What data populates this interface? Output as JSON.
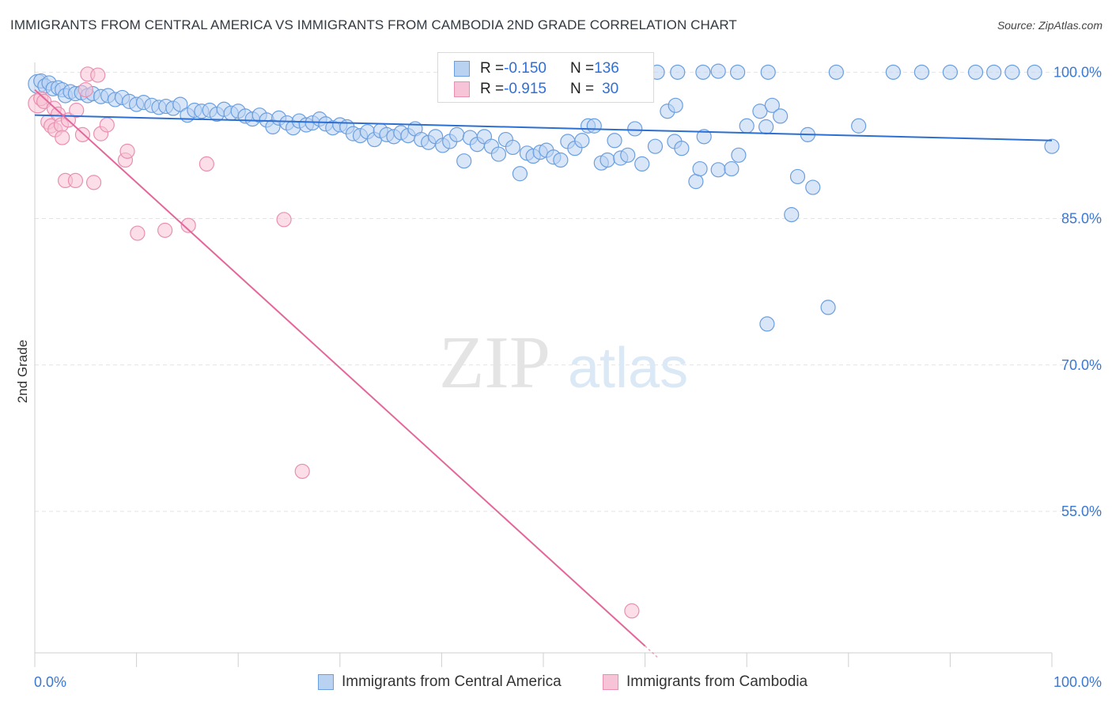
{
  "header": {
    "title": "IMMIGRANTS FROM CENTRAL AMERICA VS IMMIGRANTS FROM CAMBODIA 2ND GRADE CORRELATION CHART",
    "source": "Source: ZipAtlas.com"
  },
  "watermark": {
    "zip": "ZIP",
    "atlas": "atlas"
  },
  "colors": {
    "blue": "#6a9fe0",
    "blue_fill": "#b9d2f2",
    "blue_line": "#2d6fd1",
    "pink": "#ea8fb0",
    "pink_fill": "#f7c3d6",
    "pink_line": "#e4679a",
    "tick_label": "#3a78d4",
    "grid": "#e3e3e3"
  },
  "legend_top": {
    "rows": [
      {
        "r_label": "R = ",
        "r_value": "-0.150",
        "n_label": "N = ",
        "n_value": "136"
      },
      {
        "r_label": "R = ",
        "r_value": "-0.915",
        "n_label": "N = ",
        "n_value": "30"
      }
    ]
  },
  "legend_bottom": {
    "items": [
      "Immigrants from Central America",
      "Immigrants from Cambodia"
    ]
  },
  "chart_data": {
    "type": "scatter",
    "title": "IMMIGRANTS FROM CENTRAL AMERICA VS IMMIGRANTS FROM CAMBODIA 2ND GRADE CORRELATION CHART",
    "xlabel": "",
    "ylabel": "2nd Grade",
    "xlim": [
      0,
      100
    ],
    "ylim": [
      40.5,
      101
    ],
    "x_tick_labels": [
      "0.0%",
      "100.0%"
    ],
    "y_ticks": [
      100,
      85,
      70,
      55
    ],
    "y_tick_labels": [
      "100.0%",
      "85.0%",
      "70.0%",
      "55.0%"
    ],
    "grid": "horizontal dashed",
    "legend_position": "top-center",
    "series": [
      {
        "name": "Immigrants from Central America",
        "R": -0.15,
        "N": 136,
        "trend": {
          "x": [
            0,
            100
          ],
          "y": [
            95.6,
            93.0
          ]
        },
        "points": [
          [
            0.3,
            98.8,
            2
          ],
          [
            0.6,
            99.1,
            1
          ],
          [
            1.0,
            98.6,
            1
          ],
          [
            1.4,
            98.9,
            1
          ],
          [
            1.8,
            98.3,
            1
          ],
          [
            2.3,
            98.4,
            1
          ],
          [
            2.7,
            98.2,
            1
          ],
          [
            3.0,
            97.6,
            1
          ],
          [
            3.5,
            98.0,
            1
          ],
          [
            4.0,
            97.8,
            1
          ],
          [
            4.6,
            97.9,
            1
          ],
          [
            5.2,
            97.6,
            1
          ],
          [
            5.7,
            97.8,
            1
          ],
          [
            6.5,
            97.5,
            1
          ],
          [
            7.2,
            97.6,
            1
          ],
          [
            7.9,
            97.2,
            1
          ],
          [
            8.6,
            97.4,
            1
          ],
          [
            9.3,
            97.0,
            1
          ],
          [
            10.0,
            96.7,
            1
          ],
          [
            10.7,
            96.9,
            1
          ],
          [
            11.5,
            96.6,
            1
          ],
          [
            12.2,
            96.4,
            1
          ],
          [
            12.9,
            96.5,
            1
          ],
          [
            13.6,
            96.3,
            1
          ],
          [
            14.3,
            96.7,
            1
          ],
          [
            15.0,
            95.6,
            1
          ],
          [
            15.7,
            96.1,
            1
          ],
          [
            16.4,
            96.0,
            1
          ],
          [
            17.2,
            96.1,
            1
          ],
          [
            17.9,
            95.7,
            1
          ],
          [
            18.6,
            96.2,
            1
          ],
          [
            19.3,
            95.8,
            1
          ],
          [
            20.0,
            96.0,
            1
          ],
          [
            20.7,
            95.5,
            1
          ],
          [
            21.4,
            95.2,
            1
          ],
          [
            22.1,
            95.6,
            1
          ],
          [
            22.8,
            95.1,
            1
          ],
          [
            23.4,
            94.4,
            1
          ],
          [
            24.0,
            95.3,
            1
          ],
          [
            24.8,
            94.8,
            1
          ],
          [
            25.4,
            94.3,
            1
          ],
          [
            26.0,
            95.0,
            1
          ],
          [
            26.7,
            94.6,
            1
          ],
          [
            27.3,
            94.8,
            1
          ],
          [
            28.0,
            95.2,
            1
          ],
          [
            28.6,
            94.7,
            1
          ],
          [
            29.3,
            94.3,
            1
          ],
          [
            30.0,
            94.6,
            1
          ],
          [
            30.7,
            94.4,
            1
          ],
          [
            31.3,
            93.7,
            1
          ],
          [
            32.0,
            93.5,
            1
          ],
          [
            32.7,
            93.9,
            1
          ],
          [
            33.4,
            93.1,
            1
          ],
          [
            34.0,
            94.0,
            1
          ],
          [
            34.6,
            93.6,
            1
          ],
          [
            35.3,
            93.4,
            1
          ],
          [
            36.0,
            93.8,
            1
          ],
          [
            36.7,
            93.5,
            1
          ],
          [
            37.4,
            94.2,
            1
          ],
          [
            38.0,
            93.1,
            1
          ],
          [
            38.7,
            92.8,
            1
          ],
          [
            39.4,
            93.4,
            1
          ],
          [
            40.1,
            92.5,
            1
          ],
          [
            40.8,
            92.9,
            1
          ],
          [
            41.5,
            93.6,
            1
          ],
          [
            42.2,
            90.9,
            1
          ],
          [
            42.8,
            93.3,
            1
          ],
          [
            43.5,
            92.6,
            1
          ],
          [
            44.2,
            93.4,
            1
          ],
          [
            44.9,
            92.4,
            1
          ],
          [
            45.6,
            91.6,
            1
          ],
          [
            46.3,
            93.1,
            1
          ],
          [
            47.0,
            92.3,
            1
          ],
          [
            47.7,
            89.6,
            1
          ],
          [
            48.4,
            91.7,
            1
          ],
          [
            49.0,
            91.4,
            1
          ],
          [
            49.7,
            91.8,
            1
          ],
          [
            50.3,
            92.0,
            1
          ],
          [
            51.0,
            91.3,
            1
          ],
          [
            51.7,
            91.0,
            1
          ],
          [
            52.4,
            92.9,
            1
          ],
          [
            53.1,
            92.2,
            1
          ],
          [
            53.8,
            93.0,
            1
          ],
          [
            54.4,
            94.5,
            1
          ],
          [
            55.0,
            94.5,
            1
          ],
          [
            55.7,
            90.7,
            1
          ],
          [
            56.3,
            91.0,
            1
          ],
          [
            57.0,
            93.0,
            1
          ],
          [
            57.6,
            91.2,
            1
          ],
          [
            58.3,
            91.5,
            1
          ],
          [
            59.0,
            94.2,
            1
          ],
          [
            59.7,
            90.6,
            1
          ],
          [
            61.0,
            92.4,
            1
          ],
          [
            62.2,
            96.0,
            1
          ],
          [
            62.9,
            92.9,
            1
          ],
          [
            63.6,
            92.2,
            1
          ],
          [
            65.0,
            88.8,
            1
          ],
          [
            65.4,
            90.1,
            1
          ],
          [
            65.8,
            93.4,
            1
          ],
          [
            67.2,
            90.0,
            1
          ],
          [
            68.5,
            90.1,
            1
          ],
          [
            69.2,
            91.5,
            1
          ],
          [
            70.0,
            94.5,
            1
          ],
          [
            71.3,
            96.0,
            1
          ],
          [
            71.9,
            94.4,
            1
          ],
          [
            72.5,
            96.6,
            1
          ],
          [
            73.3,
            95.5,
            1
          ],
          [
            74.4,
            85.4,
            1
          ],
          [
            75.0,
            89.3,
            1
          ],
          [
            76.0,
            93.6,
            1
          ],
          [
            76.5,
            88.2,
            1
          ],
          [
            78.0,
            75.9,
            1
          ],
          [
            81.0,
            94.5,
            1
          ],
          [
            72.0,
            74.2,
            1
          ],
          [
            63.0,
            96.6,
            1
          ],
          [
            47.3,
            100.1,
            1
          ],
          [
            48.8,
            100.1,
            1
          ],
          [
            50.0,
            100.0,
            1
          ],
          [
            52.9,
            99.9,
            1
          ],
          [
            54.1,
            100.0,
            1
          ],
          [
            56.3,
            100.0,
            1
          ],
          [
            61.2,
            100.0,
            1
          ],
          [
            63.2,
            100.0,
            1
          ],
          [
            65.7,
            100.0,
            1
          ],
          [
            67.2,
            100.1,
            1
          ],
          [
            69.1,
            100.0,
            1
          ],
          [
            72.1,
            100.0,
            1
          ],
          [
            78.8,
            100.0,
            1
          ],
          [
            84.4,
            100.0,
            1
          ],
          [
            87.2,
            100.0,
            1
          ],
          [
            90.0,
            100.0,
            1
          ],
          [
            92.5,
            100.0,
            1
          ],
          [
            94.3,
            100.0,
            1
          ],
          [
            96.1,
            100.0,
            1
          ],
          [
            98.3,
            100.0,
            1
          ],
          [
            100.0,
            92.4,
            1
          ]
        ]
      },
      {
        "name": "Immigrants from Cambodia",
        "R": -0.915,
        "N": 30,
        "trend": {
          "x": [
            0,
            60
          ],
          "y": [
            98.2,
            41.2
          ]
        },
        "points": [
          [
            0.3,
            96.8,
            2
          ],
          [
            0.6,
            97.3,
            1
          ],
          [
            0.9,
            97.0,
            1
          ],
          [
            1.3,
            94.9,
            1
          ],
          [
            1.6,
            94.5,
            1
          ],
          [
            1.9,
            96.3,
            1
          ],
          [
            2.0,
            94.1,
            1
          ],
          [
            2.3,
            95.7,
            1
          ],
          [
            2.6,
            94.6,
            1
          ],
          [
            2.7,
            93.3,
            1
          ],
          [
            3.0,
            88.9,
            1
          ],
          [
            3.3,
            95.1,
            1
          ],
          [
            4.1,
            96.1,
            1
          ],
          [
            4.0,
            88.9,
            1
          ],
          [
            4.7,
            93.6,
            1
          ],
          [
            5.0,
            98.2,
            1
          ],
          [
            5.2,
            99.8,
            1
          ],
          [
            5.8,
            88.7,
            1
          ],
          [
            6.2,
            99.7,
            1
          ],
          [
            6.5,
            93.7,
            1
          ],
          [
            7.1,
            94.6,
            1
          ],
          [
            8.9,
            91.0,
            1
          ],
          [
            9.1,
            91.9,
            1
          ],
          [
            10.1,
            83.5,
            1
          ],
          [
            12.8,
            83.8,
            1
          ],
          [
            15.1,
            84.3,
            1
          ],
          [
            16.9,
            90.6,
            1
          ],
          [
            24.5,
            84.9,
            1
          ],
          [
            26.3,
            59.1,
            1
          ],
          [
            58.7,
            44.8,
            1
          ]
        ]
      }
    ]
  }
}
